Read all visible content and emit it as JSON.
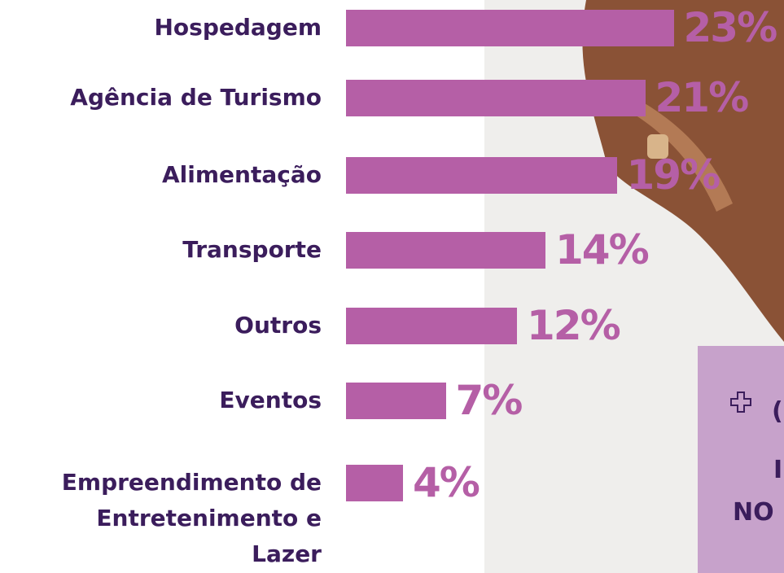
{
  "chart_data": {
    "type": "bar",
    "orientation": "horizontal",
    "categories": [
      "Hospedagem",
      "Agência de Turismo",
      "Alimentação",
      "Transporte",
      "Outros",
      "Eventos",
      "Empreendimento de Entretenimento e Lazer"
    ],
    "values": [
      23,
      21,
      19,
      14,
      12,
      7,
      4
    ],
    "value_labels": [
      "23%",
      "21%",
      "19%",
      "14%",
      "12%",
      "7%",
      "4%"
    ],
    "color": "#b55fa6"
  },
  "side_box": {
    "texts": [
      "(",
      "I",
      "NO"
    ]
  }
}
